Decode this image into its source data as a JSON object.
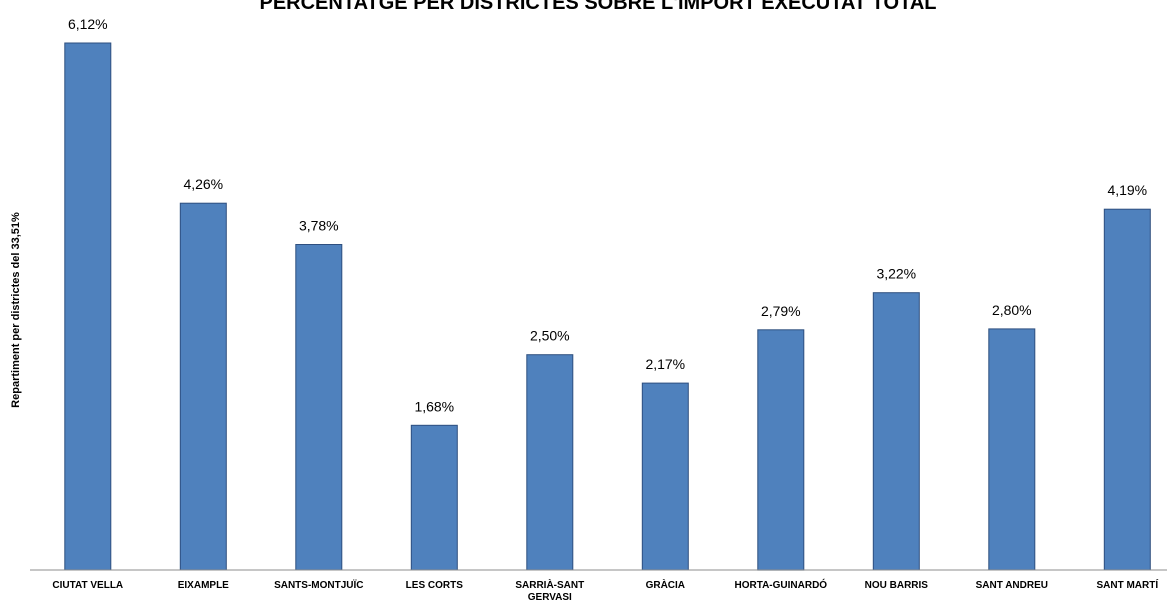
{
  "chart_data": {
    "type": "bar",
    "title": "PERCENTATGE PER DISTRICTES SOBRE L'IMPORT EXECUTAT TOTAL",
    "xlabel": "",
    "ylabel": "Repartiment per districtes del 33,51%",
    "categories": [
      "CIUTAT VELLA",
      "EIXAMPLE",
      "SANTS-MONTJUÏC",
      "LES CORTS",
      "SARRIÀ-SANT GERVASI",
      "GRÀCIA",
      "HORTA-GUINARDÓ",
      "NOU BARRIS",
      "SANT ANDREU",
      "SANT MARTÍ"
    ],
    "category_lines": [
      [
        "CIUTAT VELLA"
      ],
      [
        "EIXAMPLE"
      ],
      [
        "SANTS-MONTJUÏC"
      ],
      [
        "LES CORTS"
      ],
      [
        "SARRIÀ-SANT",
        "GERVASI"
      ],
      [
        "GRÀCIA"
      ],
      [
        "HORTA-GUINARDÓ"
      ],
      [
        "NOU BARRIS"
      ],
      [
        "SANT ANDREU"
      ],
      [
        "SANT MARTÍ"
      ]
    ],
    "values": [
      6.12,
      4.26,
      3.78,
      1.68,
      2.5,
      2.17,
      2.79,
      3.22,
      2.8,
      4.19
    ],
    "data_labels": [
      "6,12%",
      "4,26%",
      "3,78%",
      "1,68%",
      "2,50%",
      "2,17%",
      "2,79%",
      "3,22%",
      "2,80%",
      "4,19%"
    ],
    "ylim": [
      0,
      6.12
    ],
    "grid": false,
    "legend": "none",
    "bar_color": "#4f81bd"
  }
}
